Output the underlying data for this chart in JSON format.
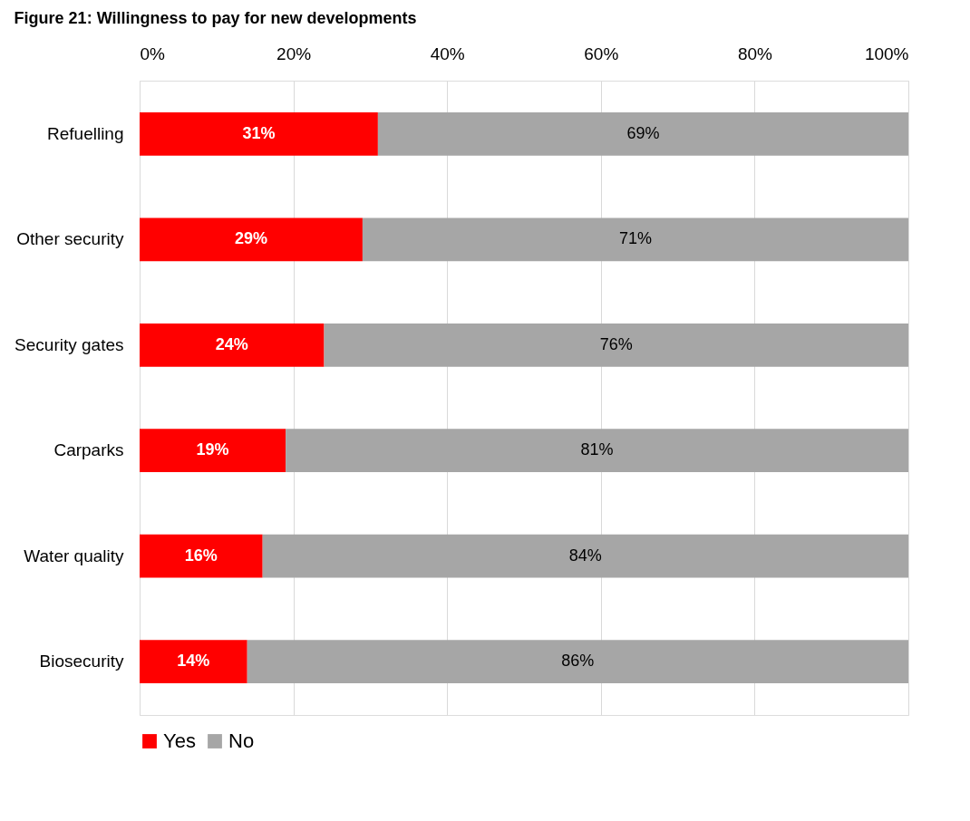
{
  "chart_data": {
    "type": "bar",
    "orientation": "horizontal",
    "stacked": true,
    "title": "Figure 21: Willingness to pay for new developments",
    "categories": [
      "Refuelling",
      "Other security",
      "Security gates",
      "Carparks",
      "Water quality",
      "Biosecurity"
    ],
    "series": [
      {
        "name": "Yes",
        "color": "#ff0000",
        "values": [
          31,
          29,
          24,
          19,
          16,
          14
        ],
        "value_labels": [
          "31%",
          "29%",
          "24%",
          "19%",
          "16%",
          "14%"
        ]
      },
      {
        "name": "No",
        "color": "#a6a6a6",
        "values": [
          69,
          71,
          76,
          81,
          84,
          86
        ],
        "value_labels": [
          "69%",
          "71%",
          "76%",
          "81%",
          "84%",
          "86%"
        ]
      }
    ],
    "xlim": [
      0,
      100
    ],
    "xticks": [
      {
        "value": 0,
        "label": "0%"
      },
      {
        "value": 20,
        "label": "20%"
      },
      {
        "value": 40,
        "label": "40%"
      },
      {
        "value": 60,
        "label": "60%"
      },
      {
        "value": 80,
        "label": "80%"
      },
      {
        "value": 100,
        "label": "100%"
      }
    ],
    "grid": "x",
    "legend": "bottom"
  }
}
